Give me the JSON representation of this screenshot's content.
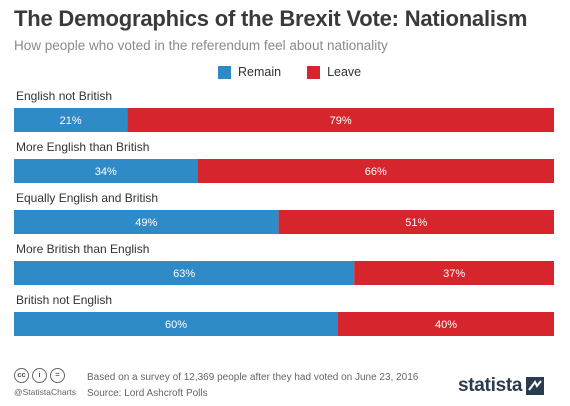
{
  "title": "The Demographics of the Brexit Vote: Nationalism",
  "subtitle": "How people who voted in the referendum feel about nationality",
  "legend": {
    "remain": "Remain",
    "leave": "Leave"
  },
  "colors": {
    "remain": "#2f8ac8",
    "leave": "#d7252d",
    "label_text": "#ffffff"
  },
  "chart_data": {
    "type": "bar",
    "orientation": "horizontal",
    "stacked": true,
    "categories": [
      "English not British",
      "More English than British",
      "Equally English and British",
      "More British than English",
      "British not English"
    ],
    "series": [
      {
        "name": "Remain",
        "values": [
          21,
          34,
          49,
          63,
          60
        ],
        "labels": [
          "21%",
          "34%",
          "49%",
          "63%",
          "60%"
        ]
      },
      {
        "name": "Leave",
        "values": [
          79,
          66,
          51,
          37,
          40
        ],
        "labels": [
          "79%",
          "66%",
          "51%",
          "37%",
          "40%"
        ]
      }
    ],
    "unit": "%",
    "xlim": [
      0,
      100
    ],
    "grid": false,
    "legend_position": "top"
  },
  "footer": {
    "note": "Based on a survey of 12,369 people after they had voted on June 23, 2016",
    "source": "Source: Lord Ashcroft Polls",
    "handle": "@StatistaCharts",
    "license_icons": [
      "cc-icon",
      "attribution-icon",
      "no-derivatives-icon"
    ],
    "license_glyphs": [
      "cc",
      "i",
      "="
    ],
    "logo_text": "statista"
  }
}
